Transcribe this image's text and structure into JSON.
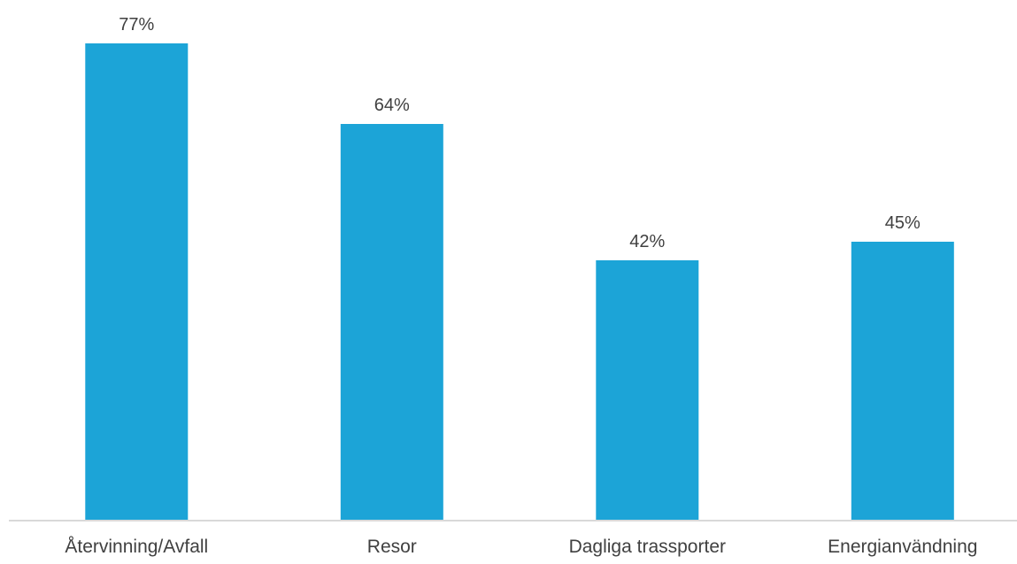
{
  "chart_data": {
    "type": "bar",
    "title": "",
    "xlabel": "",
    "ylabel": "",
    "categories": [
      "Återvinning/Avfall",
      "Resor",
      "Dagliga trassporter",
      "Energianvändning"
    ],
    "values": [
      77,
      64,
      42,
      45
    ],
    "value_labels": [
      "77%",
      "64%",
      "42%",
      "45%"
    ],
    "ylim": [
      0,
      100
    ],
    "grid": false,
    "legend": "none",
    "colors": {
      "bar": "#1ca4d7",
      "axis": "#d9d9d9",
      "text": "#404040"
    }
  }
}
